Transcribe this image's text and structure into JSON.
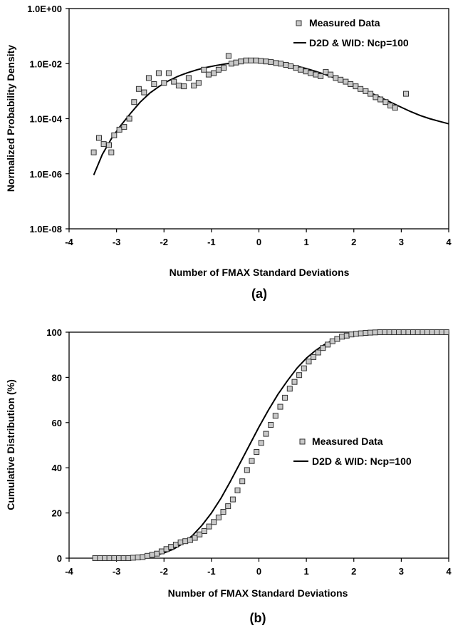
{
  "chart_data": [
    {
      "type": "scatter",
      "panel_label": "(a)",
      "xlabel": "Number of FMAX Standard Deviations",
      "ylabel": "Normalized Probability Density",
      "xlim": [
        -4,
        4
      ],
      "ylim": [
        1e-08,
        1
      ],
      "yscale": "log",
      "x_ticks": [
        "-4",
        "-3",
        "-2",
        "-1",
        "0",
        "1",
        "2",
        "3",
        "4"
      ],
      "y_ticks": [
        "1.0E-08",
        "1.0E-06",
        "1.0E-04",
        "1.0E-02",
        "1.0E+00"
      ],
      "grid": false,
      "legend_position": "top-right",
      "series": [
        {
          "name": "Measured Data",
          "kind": "markers",
          "x": [
            -3.48,
            -3.37,
            -3.27,
            -3.16,
            -3.11,
            -3.05,
            -2.94,
            -2.84,
            -2.73,
            -2.63,
            -2.53,
            -2.42,
            -2.32,
            -2.21,
            -2.11,
            -2.0,
            -1.9,
            -1.79,
            -1.69,
            -1.58,
            -1.48,
            -1.37,
            -1.27,
            -1.16,
            -1.06,
            -0.95,
            -0.85,
            -0.74,
            -0.64,
            -0.58,
            -0.48,
            -0.38,
            -0.27,
            -0.17,
            -0.06,
            0.04,
            0.15,
            0.25,
            0.36,
            0.46,
            0.57,
            0.67,
            0.78,
            0.88,
            0.99,
            1.09,
            1.2,
            1.3,
            1.41,
            1.51,
            1.62,
            1.72,
            1.83,
            1.93,
            2.04,
            2.14,
            2.25,
            2.35,
            2.46,
            2.56,
            2.67,
            2.77,
            2.87,
            3.1
          ],
          "y": [
            6e-06,
            2e-05,
            1.2e-05,
            1.1e-05,
            6e-06,
            2.5e-05,
            4e-05,
            5e-05,
            0.0001,
            0.0004,
            0.0012,
            0.0009,
            0.003,
            0.0018,
            0.0045,
            0.002,
            0.0045,
            0.0022,
            0.0016,
            0.0015,
            0.003,
            0.0016,
            0.002,
            0.006,
            0.004,
            0.0045,
            0.006,
            0.007,
            0.019,
            0.01,
            0.011,
            0.012,
            0.013,
            0.013,
            0.013,
            0.0125,
            0.012,
            0.0115,
            0.0105,
            0.01,
            0.009,
            0.008,
            0.007,
            0.006,
            0.0052,
            0.0045,
            0.004,
            0.0035,
            0.005,
            0.004,
            0.003,
            0.0026,
            0.0022,
            0.0018,
            0.0015,
            0.0012,
            0.001,
            0.0008,
            0.0006,
            0.0005,
            0.0004,
            0.0003,
            0.00025,
            0.0008
          ]
        },
        {
          "name": "D2D & WID: Ncp=100",
          "kind": "line",
          "x": [
            -3.48,
            -3.3,
            -3.1,
            -2.9,
            -2.7,
            -2.5,
            -2.3,
            -2.1,
            -1.9,
            -1.7,
            -1.5,
            -1.3,
            -1.1,
            -0.9,
            -0.7,
            -0.5,
            -0.3,
            -0.1,
            0.0,
            0.2,
            0.4,
            0.6,
            0.8,
            1.0,
            1.2,
            1.4,
            1.6,
            1.8,
            2.0,
            2.2,
            2.4,
            2.6,
            2.8,
            3.0,
            3.2,
            3.4,
            3.6,
            3.8,
            4.0
          ],
          "y": [
            9e-07,
            5e-06,
            2e-05,
            6e-05,
            0.00016,
            0.0004,
            0.00085,
            0.0015,
            0.0024,
            0.0035,
            0.0047,
            0.006,
            0.0073,
            0.0086,
            0.0098,
            0.011,
            0.012,
            0.0125,
            0.0125,
            0.012,
            0.011,
            0.0096,
            0.0081,
            0.0066,
            0.0052,
            0.004,
            0.003,
            0.0022,
            0.0016,
            0.00115,
            0.0008,
            0.00055,
            0.00038,
            0.00026,
            0.00018,
            0.00013,
            0.0001,
            8e-05,
            6.5e-05
          ]
        }
      ]
    },
    {
      "type": "scatter",
      "panel_label": "(b)",
      "xlabel": "Number of FMAX Standard Deviations",
      "ylabel": "Cumulative Distribution (%)",
      "xlim": [
        -4,
        4
      ],
      "ylim": [
        0,
        100
      ],
      "yscale": "linear",
      "x_ticks": [
        "-4",
        "-3",
        "-2",
        "-1",
        "0",
        "1",
        "2",
        "3",
        "4"
      ],
      "y_ticks": [
        "0",
        "20",
        "40",
        "60",
        "80",
        "100"
      ],
      "grid": false,
      "legend_position": "center-right",
      "series": [
        {
          "name": "Measured Data",
          "kind": "markers",
          "x": [
            -3.45,
            -3.35,
            -3.25,
            -3.15,
            -3.05,
            -2.95,
            -2.85,
            -2.75,
            -2.65,
            -2.55,
            -2.45,
            -2.35,
            -2.25,
            -2.15,
            -2.05,
            -1.95,
            -1.85,
            -1.75,
            -1.65,
            -1.55,
            -1.45,
            -1.35,
            -1.25,
            -1.15,
            -1.05,
            -0.95,
            -0.85,
            -0.75,
            -0.65,
            -0.55,
            -0.45,
            -0.35,
            -0.25,
            -0.15,
            -0.05,
            0.05,
            0.15,
            0.25,
            0.35,
            0.45,
            0.55,
            0.65,
            0.75,
            0.85,
            0.95,
            1.05,
            1.15,
            1.25,
            1.35,
            1.45,
            1.55,
            1.65,
            1.75,
            1.85,
            1.95,
            2.05,
            2.15,
            2.25,
            2.35,
            2.45,
            2.55,
            2.65,
            2.75,
            2.85,
            2.95,
            3.05,
            3.15,
            3.25,
            3.35,
            3.45,
            3.55,
            3.65,
            3.75,
            3.85,
            3.95
          ],
          "y": [
            0,
            0,
            0,
            0,
            0,
            0,
            0,
            0,
            0.2,
            0.3,
            0.5,
            1,
            1.5,
            2,
            3,
            4,
            5,
            6,
            7,
            7.5,
            8,
            9,
            10.5,
            12,
            14,
            16,
            18,
            20.5,
            23,
            26,
            30,
            34,
            39,
            43,
            47,
            51,
            55,
            59,
            63,
            67,
            71,
            75,
            78,
            81,
            84,
            87,
            89,
            91,
            93,
            94.5,
            96,
            97,
            98,
            98.5,
            99,
            99.3,
            99.5,
            99.7,
            99.8,
            99.9,
            100,
            100,
            100,
            100,
            100,
            100,
            100,
            100,
            100,
            100,
            100,
            100,
            100,
            100,
            100
          ]
        },
        {
          "name": "D2D & WID: Ncp=100",
          "kind": "line",
          "x": [
            -3.5,
            -3.0,
            -2.5,
            -2.2,
            -2.0,
            -1.8,
            -1.6,
            -1.4,
            -1.2,
            -1.0,
            -0.8,
            -0.6,
            -0.4,
            -0.2,
            0.0,
            0.2,
            0.4,
            0.6,
            0.8,
            1.0,
            1.2,
            1.4,
            1.6,
            1.8,
            2.0,
            2.2,
            2.5,
            3.0,
            3.5,
            4.0
          ],
          "y": [
            0,
            0.05,
            0.4,
            1.2,
            2.3,
            4,
            6.5,
            10,
            14.5,
            20,
            26.5,
            34,
            42,
            50,
            58,
            65.5,
            72.5,
            78.5,
            84,
            88.5,
            92,
            94.8,
            96.8,
            98,
            98.9,
            99.4,
            99.8,
            100,
            100,
            100
          ]
        }
      ]
    }
  ]
}
